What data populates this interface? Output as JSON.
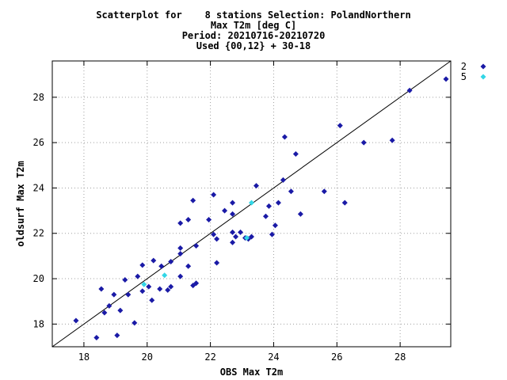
{
  "chart_data": {
    "type": "scatter",
    "title_lines": [
      "Scatterplot for    8 stations Selection: PolandNorthern",
      "Max T2m [deg C]",
      "Period: 20210716-20210720",
      "Used {00,12} + 30-18"
    ],
    "xlabel": "OBS Max T2m",
    "ylabel": "oldsurf Max T2m",
    "xlim": [
      17,
      29.6
    ],
    "ylim": [
      17,
      29.6
    ],
    "xticks": [
      18,
      20,
      22,
      24,
      26,
      28
    ],
    "yticks": [
      18,
      20,
      22,
      24,
      26,
      28
    ],
    "grid": true,
    "diagonal": true,
    "legend_position": "right",
    "series": [
      {
        "name": "2",
        "color": "#1a1aa6",
        "points": [
          [
            17.75,
            18.15
          ],
          [
            18.4,
            17.4
          ],
          [
            18.55,
            19.55
          ],
          [
            18.65,
            18.5
          ],
          [
            18.8,
            18.8
          ],
          [
            18.95,
            19.3
          ],
          [
            19.05,
            17.5
          ],
          [
            19.15,
            18.6
          ],
          [
            19.3,
            19.95
          ],
          [
            19.4,
            19.3
          ],
          [
            19.6,
            18.05
          ],
          [
            19.7,
            20.1
          ],
          [
            19.85,
            19.45
          ],
          [
            19.85,
            20.6
          ],
          [
            20.05,
            19.65
          ],
          [
            20.15,
            19.05
          ],
          [
            20.2,
            20.8
          ],
          [
            20.4,
            19.55
          ],
          [
            20.45,
            20.55
          ],
          [
            20.65,
            19.5
          ],
          [
            20.75,
            19.65
          ],
          [
            20.75,
            20.75
          ],
          [
            21.05,
            20.1
          ],
          [
            21.05,
            21.1
          ],
          [
            21.05,
            21.35
          ],
          [
            21.05,
            22.45
          ],
          [
            21.3,
            22.6
          ],
          [
            21.3,
            20.55
          ],
          [
            21.45,
            19.7
          ],
          [
            21.45,
            23.45
          ],
          [
            21.55,
            19.8
          ],
          [
            21.55,
            21.45
          ],
          [
            21.95,
            22.6
          ],
          [
            22.1,
            21.95
          ],
          [
            22.1,
            23.7
          ],
          [
            22.2,
            21.75
          ],
          [
            22.2,
            20.7
          ],
          [
            22.45,
            23.0
          ],
          [
            22.7,
            23.35
          ],
          [
            22.7,
            22.85
          ],
          [
            22.7,
            22.05
          ],
          [
            22.7,
            21.6
          ],
          [
            22.8,
            21.85
          ],
          [
            22.95,
            22.05
          ],
          [
            23.1,
            21.8
          ],
          [
            23.2,
            21.75
          ],
          [
            23.3,
            21.85
          ],
          [
            23.45,
            24.1
          ],
          [
            23.75,
            22.75
          ],
          [
            23.85,
            23.2
          ],
          [
            23.95,
            21.95
          ],
          [
            24.05,
            22.35
          ],
          [
            24.15,
            23.35
          ],
          [
            24.3,
            24.35
          ],
          [
            24.35,
            26.25
          ],
          [
            24.55,
            23.85
          ],
          [
            24.7,
            25.5
          ],
          [
            24.85,
            22.85
          ],
          [
            25.6,
            23.85
          ],
          [
            26.1,
            26.75
          ],
          [
            26.25,
            23.35
          ],
          [
            26.85,
            26.0
          ],
          [
            27.75,
            26.1
          ],
          [
            28.3,
            28.3
          ],
          [
            29.45,
            28.8
          ]
        ]
      },
      {
        "name": "5",
        "color": "#33d6e6",
        "points": [
          [
            19.9,
            19.75
          ],
          [
            20.55,
            20.15
          ],
          [
            23.15,
            21.8
          ],
          [
            23.3,
            23.35
          ]
        ]
      }
    ]
  }
}
